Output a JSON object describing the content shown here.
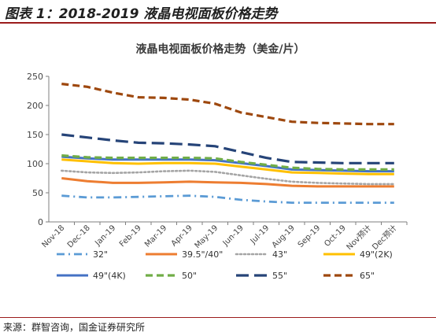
{
  "figure_title": "图表 1：2018-2019 液晶电视面板价格走势",
  "source_note": "来源：群智咨询，国金证券研究所",
  "chart_data": {
    "type": "line",
    "title": "液晶电视面板价格走势（美金/片）",
    "xlabel": "",
    "ylabel": "",
    "ylim": [
      0,
      250
    ],
    "yticks": [
      0,
      50,
      100,
      150,
      200,
      250
    ],
    "grid": false,
    "legend": "bottom",
    "categories": [
      "Nov-18",
      "Dec-18",
      "Jan-19",
      "Feb-19",
      "Mar-19",
      "Apr-19",
      "May-19",
      "Jun-19",
      "Jul-19",
      "Aug-19",
      "Sep-19",
      "Oct-19",
      "Nov预计",
      "Dec预计"
    ],
    "series": [
      {
        "name": "32\"",
        "color": "#5b9bd5",
        "dash": "dashdot",
        "values": [
          45,
          42,
          42,
          43,
          44,
          45,
          43,
          38,
          35,
          33,
          33,
          33,
          33,
          33
        ]
      },
      {
        "name": "39.5\"/40\"",
        "color": "#ed7d31",
        "dash": "solid",
        "values": [
          75,
          70,
          67,
          67,
          68,
          69,
          68,
          67,
          65,
          62,
          61,
          61,
          61,
          61
        ]
      },
      {
        "name": "43\"",
        "color": "#a5a5a5",
        "dash": "dot",
        "values": [
          88,
          85,
          84,
          85,
          87,
          88,
          86,
          80,
          74,
          69,
          67,
          66,
          65,
          65
        ]
      },
      {
        "name": "49\"(2K)",
        "color": "#ffc000",
        "dash": "solid",
        "values": [
          107,
          104,
          101,
          100,
          101,
          101,
          100,
          95,
          90,
          85,
          84,
          83,
          82,
          82
        ]
      },
      {
        "name": "49\"(4K)",
        "color": "#4472c4",
        "dash": "solid",
        "values": [
          112,
          109,
          107,
          107,
          107,
          107,
          106,
          101,
          96,
          90,
          89,
          88,
          87,
          87
        ]
      },
      {
        "name": "50\"",
        "color": "#70ad47",
        "dash": "dash",
        "values": [
          114,
          111,
          110,
          110,
          110,
          110,
          109,
          103,
          98,
          93,
          91,
          90,
          90,
          90
        ]
      },
      {
        "name": "55\"",
        "color": "#264478",
        "dash": "longdash",
        "values": [
          150,
          145,
          140,
          136,
          135,
          133,
          130,
          120,
          110,
          103,
          102,
          101,
          101,
          101
        ]
      },
      {
        "name": "65\"",
        "color": "#9e480e",
        "dash": "dash",
        "values": [
          237,
          232,
          222,
          214,
          213,
          210,
          203,
          188,
          180,
          172,
          170,
          169,
          168,
          168
        ]
      }
    ]
  }
}
